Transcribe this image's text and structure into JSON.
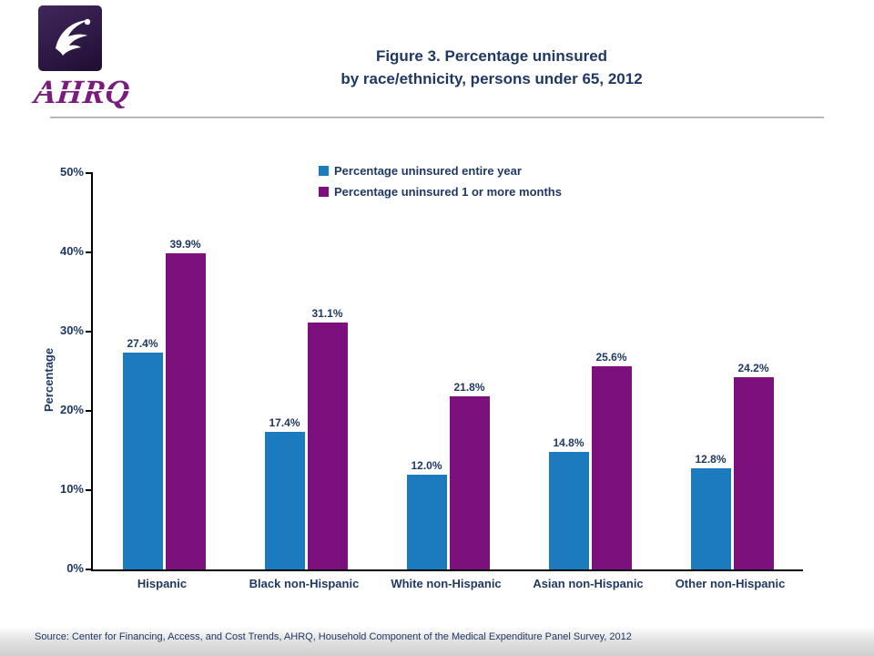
{
  "header": {
    "title_line1": "Figure 3. Percentage uninsured",
    "title_line2": "by race/ethnicity, persons under 65, 2012",
    "ahrq_logo_text": "AHRQ"
  },
  "chart_data": {
    "type": "bar",
    "title": "Figure 3. Percentage uninsured by race/ethnicity, persons under 65, 2012",
    "categories": [
      "Hispanic",
      "Black non-Hispanic",
      "White non-Hispanic",
      "Asian non-Hispanic",
      "Other non-Hispanic"
    ],
    "series": [
      {
        "name": "Percentage uninsured entire year",
        "color": "#1b7bbe",
        "values": [
          27.4,
          17.4,
          12.0,
          14.8,
          12.8
        ]
      },
      {
        "name": "Percentage uninsured 1 or more months",
        "color": "#7c107c",
        "values": [
          39.9,
          31.1,
          21.8,
          25.6,
          24.2
        ]
      }
    ],
    "xlabel": "",
    "ylabel": "Percentage",
    "ylim": [
      0,
      50
    ],
    "yticks": [
      "0%",
      "10%",
      "20%",
      "30%",
      "40%",
      "50%"
    ],
    "grid": false,
    "legend_position": "top-center",
    "value_labels": true
  },
  "footer": {
    "source": "Source: Center for Financing, Access, and Cost Trends, AHRQ, Household Component of the Medical Expenditure Panel Survey, 2012"
  }
}
